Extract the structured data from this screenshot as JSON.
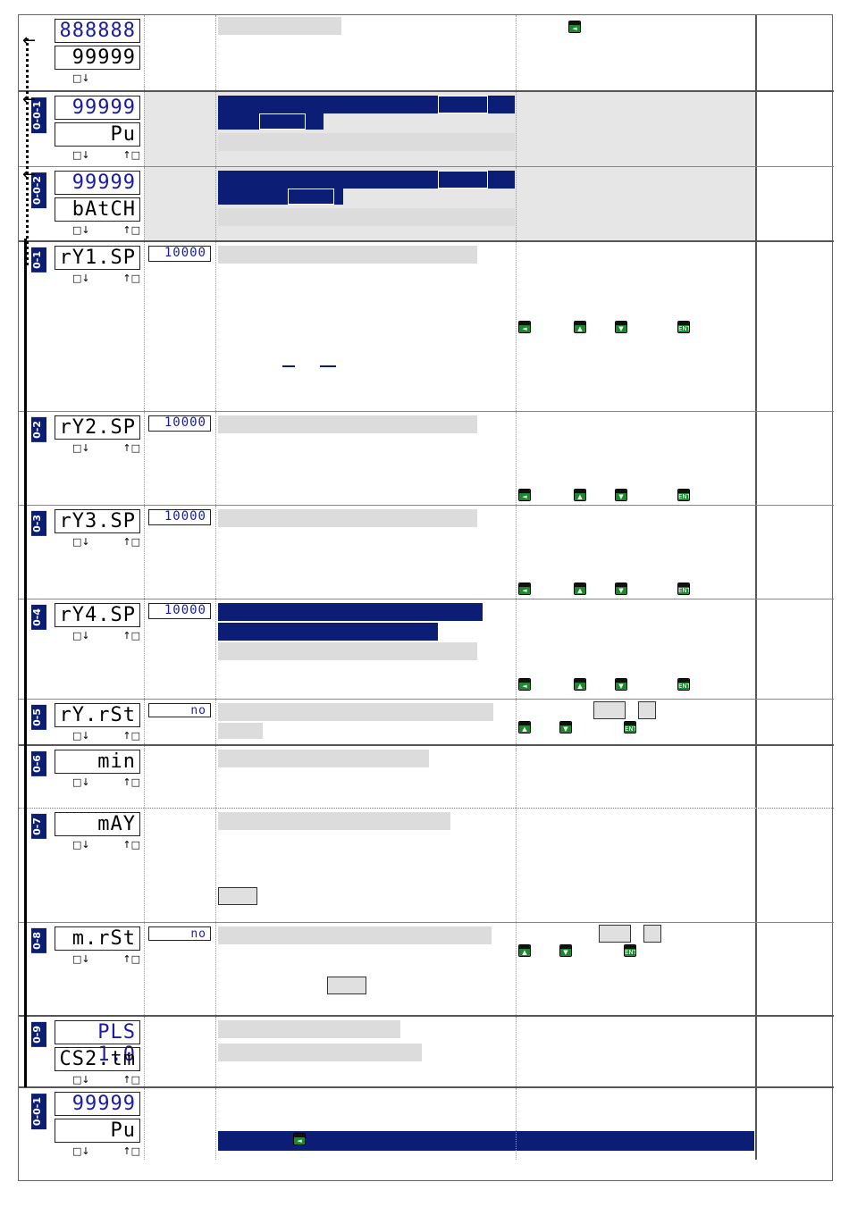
{
  "colors": {
    "accent": "#0b1d74",
    "lcd_text": "#1a1aa8",
    "key_green": "#1b8a2e",
    "shade": "#e6e6e6"
  },
  "rows": [
    {
      "id": "home",
      "badge": "",
      "upper": "888888",
      "lower": "99999",
      "upper_blue": true,
      "keys": "single"
    },
    {
      "id": "0-0-1",
      "badge": "0-0-1",
      "upper": "99999",
      "lower": "Pu",
      "upper_blue": true,
      "keys": "both"
    },
    {
      "id": "0-0-2",
      "badge": "0-0-2",
      "upper": "99999",
      "lower": "bAtCH",
      "upper_blue": true,
      "keys": "both"
    },
    {
      "id": "0-1",
      "badge": "0-1",
      "single": "rY1.SP",
      "value": "10000",
      "keys": "both"
    },
    {
      "id": "0-2",
      "badge": "0-2",
      "single": "rY2.SP",
      "value": "10000",
      "keys": "both"
    },
    {
      "id": "0-3",
      "badge": "0-3",
      "single": "rY3.SP",
      "value": "10000",
      "keys": "both"
    },
    {
      "id": "0-4",
      "badge": "0-4",
      "single": "rY4.SP",
      "value": "10000",
      "keys": "both"
    },
    {
      "id": "0-5",
      "badge": "0-5",
      "single": "rY.rSt",
      "value": "no",
      "keys": "both"
    },
    {
      "id": "0-6",
      "badge": "0-6",
      "single": "min",
      "value": "",
      "keys": "both"
    },
    {
      "id": "0-7",
      "badge": "0-7",
      "single": "mAY",
      "value": "",
      "keys": "both"
    },
    {
      "id": "0-8",
      "badge": "0-8",
      "single": "m.rSt",
      "value": "no",
      "keys": "both"
    },
    {
      "id": "0-9",
      "badge": "0-9",
      "upper": "PLS 1.0",
      "lower": "CS2.tm",
      "upper_blue": true,
      "keys": "both"
    },
    {
      "id": "0-0-1b",
      "badge": "0-0-1",
      "upper": "99999",
      "lower": "Pu",
      "upper_blue": true,
      "keys": "both"
    }
  ],
  "key_labels": {
    "ent": "ENT",
    "left": "◄",
    "up": "▲",
    "down": "▼",
    "arr_down": "↓",
    "arr_up": "↑",
    "box": "□"
  }
}
